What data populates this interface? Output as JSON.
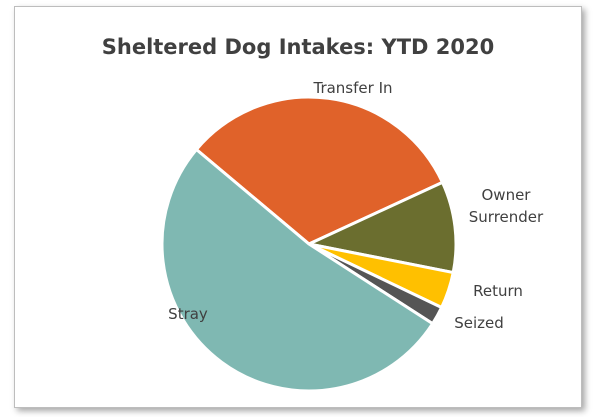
{
  "chart_data": {
    "type": "pie",
    "title": "Sheltered Dog Intakes: YTD 2020",
    "categories": [
      "Transfer In",
      "Owner Surrender",
      "Return",
      "Seized",
      "Stray"
    ],
    "values": [
      32,
      10,
      4,
      2,
      52
    ],
    "colors": [
      "#e0622a",
      "#6b6e2f",
      "#ffc000",
      "#555555",
      "#7fb8b2"
    ]
  }
}
